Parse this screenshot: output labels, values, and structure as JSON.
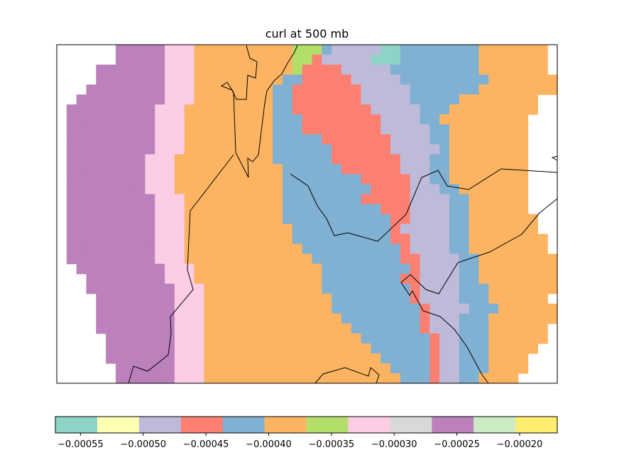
{
  "chart_data": {
    "type": "heatmap",
    "title": "curl at 500 mb",
    "colormap": [
      "#8dd3c7",
      "#ffffb3",
      "#bebada",
      "#fb8072",
      "#80b1d3",
      "#fdb462",
      "#b3de69",
      "#fccde5",
      "#d9d9d9",
      "#bc80bd",
      "#ccebc5",
      "#ffed6f"
    ],
    "colorbar": {
      "min": -0.00057,
      "max": -0.00017,
      "levels": 12,
      "tick_values": [
        -0.00055,
        -0.0005,
        -0.00045,
        -0.0004,
        -0.00035,
        -0.0003,
        -0.00025,
        -0.0002
      ],
      "tick_labels": [
        "−0.00055",
        "−0.00050",
        "−0.00045",
        "−0.00040",
        "−0.00035",
        "−0.00030",
        "−0.00025",
        "−0.00020"
      ]
    },
    "grid": {
      "cols": 51,
      "rows": 34,
      "rows_index": [
        "----ww99999777555555555566642222200444444445555555-",
        "----ww99999777555555555566322222000444444445555555-",
        "----9999999777555555555563333222224444444445555555-",
        "----99999997775555555554433333222224444444445555555",
        "---999999997775555555544333333322222444444455555555",
        "--99999999977755555555443333333222224444455555555--",
        "-999999999777555555555443333333322222444555555555--",
        "-99999999977755555555544433333333222244555555555--",
        "-99999999977755555555544433333333222224455555555---",
        "-99999999977755555555544444333333322224455555555---",
        "-99999999977755555555544444433333322222455555555---",
        "-99999999777555555555544444433333332224455555555---",
        "-99999999777555555555554444443333332224455555555---",
        "-99999999777555555555554444444433333224455555555---",
        "-99999999777555555555554444444443333222445555555---",
        "-99999999977755555555554444444433333222244555555---",
        "-99999999977755555555554444444444333222244555555---",
        "-999999999777555555555544444444444332222445555555--",
        "-999999999777555555555554444444444322222445555555--",
        "-9999999997775555555555544444444443322224455555555-",
        "-9999999997775555555555554444444444322224455555555-",
        "-99999999977755555555555554444444443322224455555555",
        "--9999999997775555555555555444444444322224455555555",
        "---999999997775555555555555444444443322224455555555",
        "---9999999997775555555555554444444443222244455555555",
        "----9999999977755555555555554444444432222444555555",
        "----999999997775555555555555444444444322224445555555",
        "----99999999777555555555555554444444432224445555555",
        "----9999999977755555555555555544444443222444555555",
        "-----999999977755555555555555554444444322444555555",
        "-----99999997775555555555555555544444432244455555",
        "-----9999999777555555555555555555444443224445555",
        "------999999777555555555555555555544443224445555",
        "------99999977755555555555555555555444322445555"
      ]
    }
  }
}
